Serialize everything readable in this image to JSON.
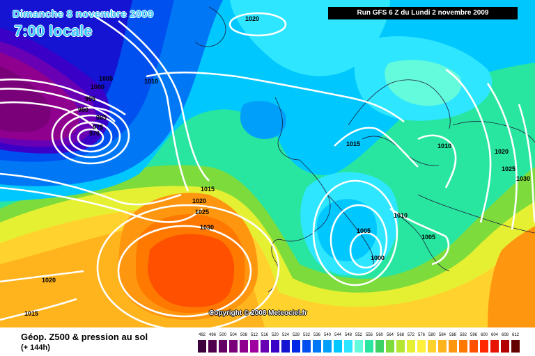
{
  "header": {
    "date": "Dimanche 8 novembre 2009",
    "time": "7:00 locale",
    "run": "Run GFS 6 Z du Lundi 2 novembre 2009"
  },
  "copyright": "Copyright © 2008 Meteociel.fr",
  "legend": {
    "title": "Géop. Z500 & pression au sol",
    "subtitle": "(+ 144h)",
    "scale": [
      {
        "value": "492",
        "color": "#3c003c"
      },
      {
        "value": "496",
        "color": "#50004f"
      },
      {
        "value": "500",
        "color": "#650065"
      },
      {
        "value": "504",
        "color": "#7a007a"
      },
      {
        "value": "508",
        "color": "#8f008f"
      },
      {
        "value": "512",
        "color": "#a000a0"
      },
      {
        "value": "516",
        "color": "#6a00b4"
      },
      {
        "value": "520",
        "color": "#3a00c8"
      },
      {
        "value": "524",
        "color": "#1414d2"
      },
      {
        "value": "528",
        "color": "#0028e6"
      },
      {
        "value": "532",
        "color": "#0050f0"
      },
      {
        "value": "536",
        "color": "#0078f5"
      },
      {
        "value": "540",
        "color": "#00a0fa"
      },
      {
        "value": "544",
        "color": "#00c8ff"
      },
      {
        "value": "548",
        "color": "#2ee6ff"
      },
      {
        "value": "552",
        "color": "#64fadc"
      },
      {
        "value": "556",
        "color": "#28e6a0"
      },
      {
        "value": "560",
        "color": "#3cd264"
      },
      {
        "value": "564",
        "color": "#7ddc3c"
      },
      {
        "value": "568",
        "color": "#b4e632"
      },
      {
        "value": "572",
        "color": "#e6f032"
      },
      {
        "value": "576",
        "color": "#fff03c"
      },
      {
        "value": "580",
        "color": "#ffd22d"
      },
      {
        "value": "584",
        "color": "#ffb41e"
      },
      {
        "value": "588",
        "color": "#ff960f"
      },
      {
        "value": "592",
        "color": "#ff7800"
      },
      {
        "value": "596",
        "color": "#ff5000"
      },
      {
        "value": "600",
        "color": "#ff2800"
      },
      {
        "value": "604",
        "color": "#e61400"
      },
      {
        "value": "608",
        "color": "#b40000"
      },
      {
        "value": "612",
        "color": "#640000"
      }
    ]
  },
  "isobar_labels": [
    {
      "id": "h1020a",
      "text": "1020"
    },
    {
      "id": "h1005a",
      "text": "1005"
    },
    {
      "id": "h1000",
      "text": "1000"
    },
    {
      "id": "h995",
      "text": "995"
    },
    {
      "id": "h990",
      "text": "990"
    },
    {
      "id": "h985",
      "text": "985"
    },
    {
      "id": "h975",
      "text": "975"
    },
    {
      "id": "h970",
      "text": "970"
    },
    {
      "id": "h1010a",
      "text": "1010"
    },
    {
      "id": "h1015a",
      "text": "1015"
    },
    {
      "id": "h1020b",
      "text": "1020"
    },
    {
      "id": "h1025a",
      "text": "1025"
    },
    {
      "id": "h1030a",
      "text": "1030"
    },
    {
      "id": "h1020c",
      "text": "1020"
    },
    {
      "id": "h1015b",
      "text": "1015"
    },
    {
      "id": "h1015c",
      "text": "1015"
    },
    {
      "id": "h1010b",
      "text": "1010"
    },
    {
      "id": "h1020d",
      "text": "1020"
    },
    {
      "id": "h1025b",
      "text": "1025"
    },
    {
      "id": "h1030b",
      "text": "1030"
    },
    {
      "id": "h1010c",
      "text": "1010"
    },
    {
      "id": "h1005b",
      "text": "1005"
    },
    {
      "id": "h1000b",
      "text": "1000"
    },
    {
      "id": "h1005c",
      "text": "1005"
    }
  ]
}
